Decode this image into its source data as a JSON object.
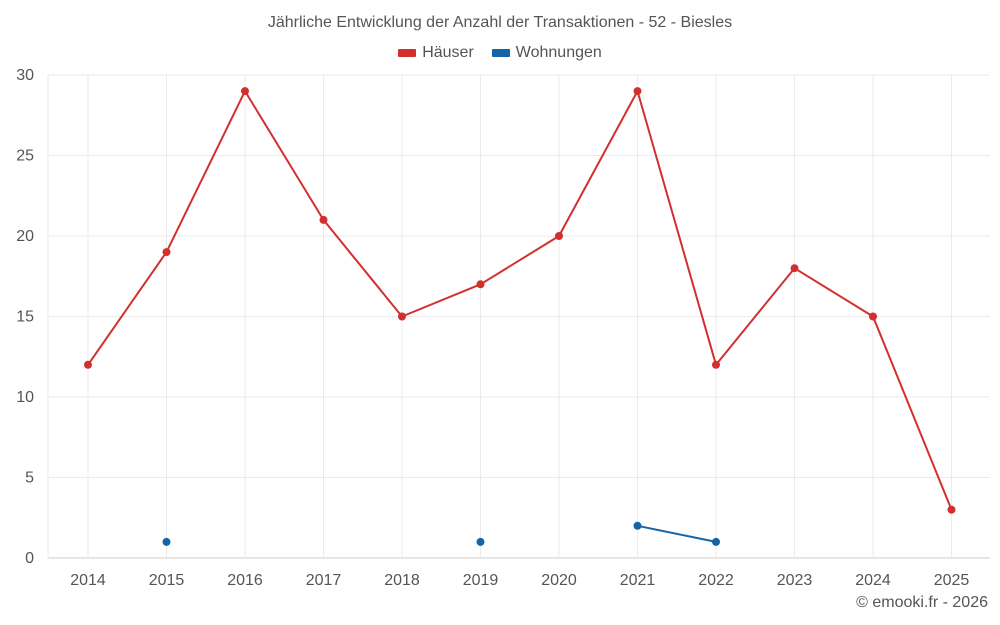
{
  "chart_data": {
    "type": "line",
    "title": "Jährliche Entwicklung der Anzahl der Transaktionen - 52 - Biesles",
    "categories": [
      "2014",
      "2015",
      "2016",
      "2017",
      "2018",
      "2019",
      "2020",
      "2021",
      "2022",
      "2023",
      "2024",
      "2025"
    ],
    "ylim": [
      0,
      30
    ],
    "yticks": [
      0,
      5,
      10,
      15,
      20,
      25,
      30
    ],
    "grid": true,
    "legend_position": "top-center",
    "series": [
      {
        "name": "Häuser",
        "color": "#d32f2f",
        "values": [
          12,
          19,
          29,
          21,
          15,
          17,
          20,
          29,
          12,
          18,
          15,
          3
        ]
      },
      {
        "name": "Wohnungen",
        "color": "#1565a6",
        "values": [
          null,
          1,
          null,
          null,
          null,
          1,
          null,
          2,
          1,
          null,
          null,
          null
        ]
      }
    ]
  },
  "credit": "© emooki.fr - 2026"
}
